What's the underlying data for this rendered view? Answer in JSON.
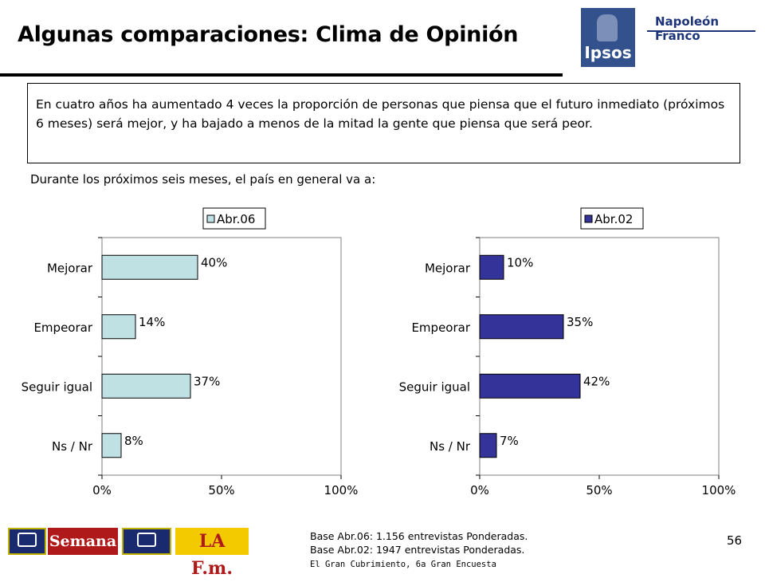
{
  "header": {
    "title": "Algunas comparaciones: Clima de Opinión",
    "logo_ipsos": "Ipsos",
    "logo_partner": "Napoleón Franco"
  },
  "summary_text": "En cuatro años ha aumentado 4 veces la proporción de personas que piensa que el futuro inmediato (próximos 6 meses) será mejor, y ha bajado a menos de la mitad la gente que piensa que será peor.",
  "question": "Durante los próximos seis meses, el país en general va a:",
  "footer": {
    "base_lines": [
      "Base Abr.06: 1.156 entrevistas Ponderadas.",
      "Base Abr.02: 1947 entrevistas Ponderadas."
    ],
    "source": "El Gran Cubrimiento, 6a Gran Encuesta",
    "page_number": "56",
    "media_logos": [
      "rcn-radio-logo",
      "semana-logo",
      "rcn-television-logo",
      "la-fm-logo"
    ],
    "semana_label": "Semana",
    "lafm_label": "LA F.m."
  },
  "colors": {
    "series_abr06": "#bfe1e3",
    "series_abr02": "#333399"
  },
  "chart_data": [
    {
      "type": "bar",
      "orientation": "horizontal",
      "categories": [
        "Mejorar",
        "Empeorar",
        "Seguir igual",
        "Ns / Nr"
      ],
      "series": [
        {
          "name": "Abr.06",
          "values": [
            40,
            14,
            37,
            8
          ],
          "color": "#bfe1e3"
        }
      ],
      "data_labels": [
        "40%",
        "14%",
        "37%",
        "8%"
      ],
      "xlim": [
        0,
        100
      ],
      "xticks": [
        "0%",
        "50%",
        "100%"
      ],
      "legend": "top",
      "grid": false
    },
    {
      "type": "bar",
      "orientation": "horizontal",
      "categories": [
        "Mejorar",
        "Empeorar",
        "Seguir igual",
        "Ns / Nr"
      ],
      "series": [
        {
          "name": "Abr.02",
          "values": [
            10,
            35,
            42,
            7
          ],
          "color": "#333399"
        }
      ],
      "data_labels": [
        "10%",
        "35%",
        "42%",
        "7%"
      ],
      "xlim": [
        0,
        100
      ],
      "xticks": [
        "0%",
        "50%",
        "100%"
      ],
      "legend": "top",
      "grid": false
    }
  ]
}
